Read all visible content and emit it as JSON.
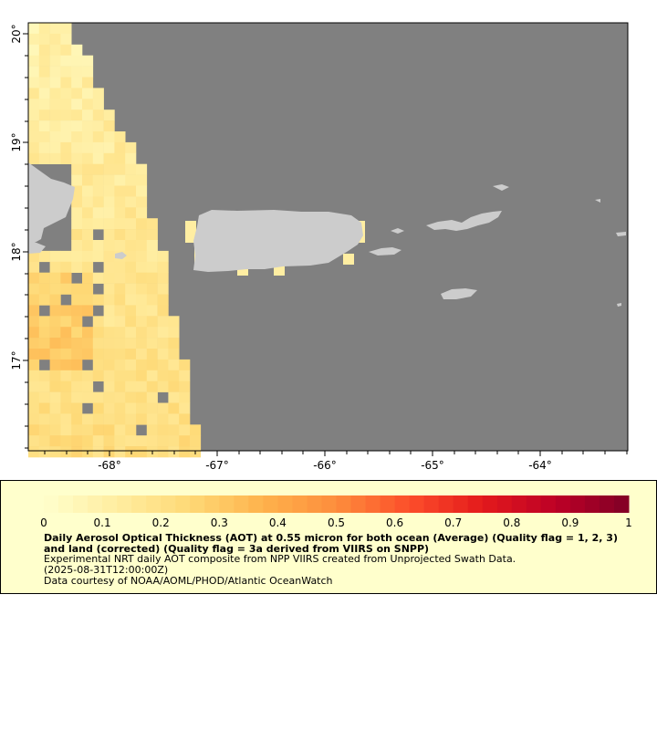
{
  "map": {
    "lon_ticks": [
      "-68°",
      "-67°",
      "-66°",
      "-65°",
      "-64°"
    ],
    "lat_ticks": [
      "20°",
      "19°",
      "18°",
      "17°"
    ],
    "colors": {
      "no_data": "#808080",
      "land": "#cccccc",
      "frame": "#000000"
    }
  },
  "legend": {
    "scale_min": 0,
    "scale_max": 1,
    "tick_labels": [
      "0",
      "0.1",
      "0.2",
      "0.3",
      "0.4",
      "0.5",
      "0.6",
      "0.7",
      "0.8",
      "0.9",
      "1"
    ],
    "palette": [
      "#ffffcc",
      "#ffeda0",
      "#fed976",
      "#feb24c",
      "#fd8d3c",
      "#fc4e2a",
      "#e31a1c",
      "#bd0026",
      "#800026"
    ],
    "title": "Daily Aerosol Optical Thickness (AOT) at 0.55 micron for both ocean (Average) (Quality flag = 1, 2, 3) and land (corrected) (Quality flag = 3a derived from VIIRS on SNPP)",
    "line1": "Experimental NRT daily AOT composite from NPP VIIRS created from Unprojected Swath Data.",
    "line2": "(2025-08-31T12:00:00Z)",
    "line3": "Data courtesy of NOAA/AOML/PHOD/Atlantic OceanWatch"
  }
}
